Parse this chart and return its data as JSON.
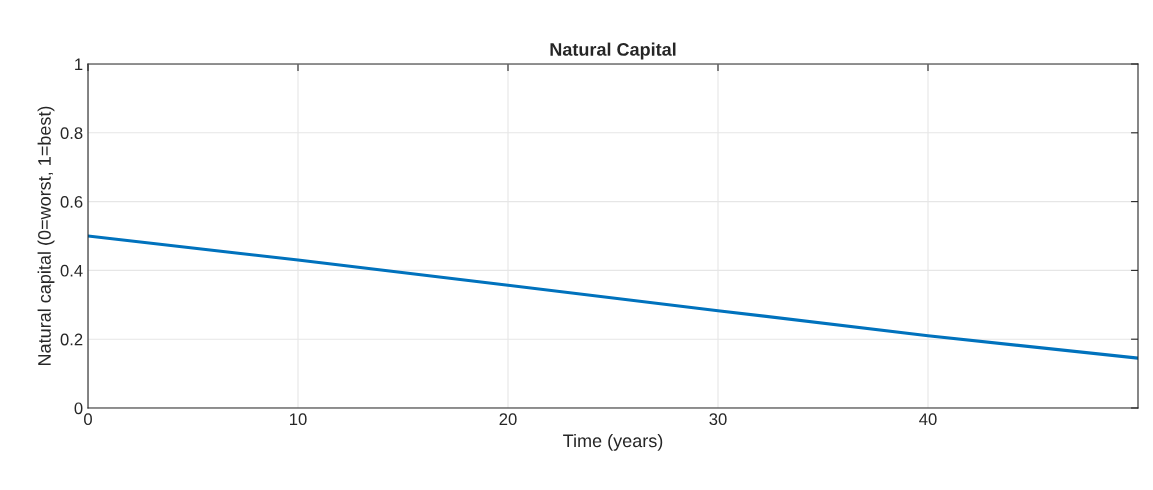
{
  "chart_data": {
    "type": "line",
    "title": "Natural Capital",
    "xlabel": "Time (years)",
    "ylabel": "Natural capital (0=worst, 1=best)",
    "x": [
      0,
      10,
      20,
      30,
      40,
      50
    ],
    "series": [
      {
        "color": "#0072bd",
        "values": [
          0.5,
          0.43,
          0.357,
          0.283,
          0.21,
          0.145
        ]
      }
    ],
    "xlim": [
      0,
      50
    ],
    "xticks": [
      0,
      10,
      20,
      30,
      40
    ],
    "ylim": [
      0,
      1
    ],
    "yticks": [
      0,
      0.2,
      0.4,
      0.6,
      0.8,
      1
    ],
    "grid": true,
    "legend": false
  }
}
